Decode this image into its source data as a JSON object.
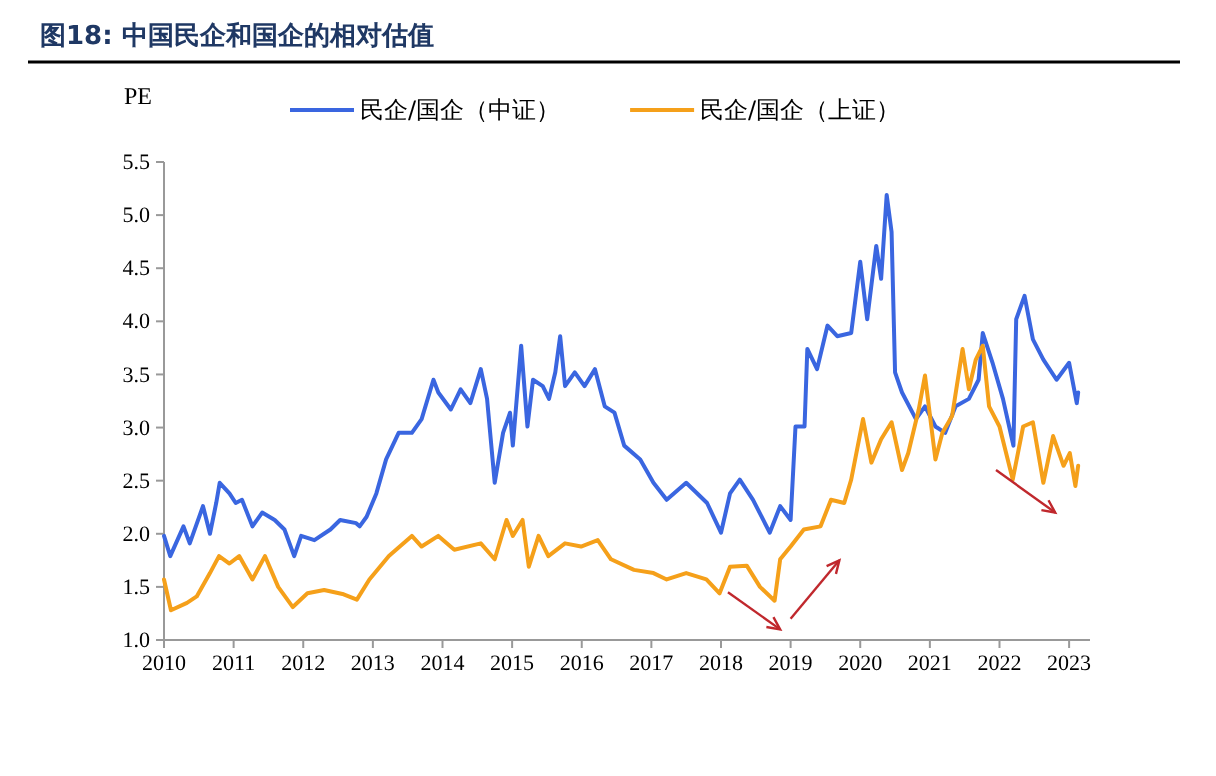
{
  "chart_data": {
    "type": "line",
    "title": "图18:  中国民企和国企的相对估值",
    "ylabel": "PE",
    "legend": "top",
    "grid": false,
    "xlim": [
      2010,
      2023.3
    ],
    "xticks": [
      2010,
      2011,
      2012,
      2013,
      2014,
      2015,
      2016,
      2017,
      2018,
      2019,
      2020,
      2021,
      2022,
      2023
    ],
    "ylim": [
      1,
      5.5
    ],
    "yticks": [
      {
        "value": 1,
        "label": "1.0"
      },
      {
        "value": 1.5,
        "label": "1.5"
      },
      {
        "value": 2,
        "label": "2.0"
      },
      {
        "value": 2.5,
        "label": "2.5"
      },
      {
        "value": 3,
        "label": "3.0"
      },
      {
        "value": 3.5,
        "label": "3.5"
      },
      {
        "value": 4,
        "label": "4.0"
      },
      {
        "value": 4.5,
        "label": "4.5"
      },
      {
        "value": 5,
        "label": "5.0"
      },
      {
        "value": 5.5,
        "label": "5.5"
      }
    ],
    "series": [
      {
        "name": "民企/国企（中证）",
        "color": "#3a66e0",
        "x": [
          2010.0,
          2010.09,
          2010.28,
          2010.37,
          2010.56,
          2010.66,
          2010.75,
          2010.8,
          2010.94,
          2011.03,
          2011.12,
          2011.27,
          2011.41,
          2011.59,
          2011.73,
          2011.87,
          2011.97,
          2012.16,
          2012.39,
          2012.53,
          2012.76,
          2012.81,
          2012.91,
          2013.05,
          2013.19,
          2013.37,
          2013.56,
          2013.7,
          2013.87,
          2013.94,
          2014.12,
          2014.26,
          2014.4,
          2014.55,
          2014.64,
          2014.75,
          2014.87,
          2014.97,
          2015.01,
          2015.13,
          2015.22,
          2015.3,
          2015.44,
          2015.53,
          2015.62,
          2015.69,
          2015.76,
          2015.9,
          2016.04,
          2016.19,
          2016.33,
          2016.47,
          2016.61,
          2016.84,
          2017.03,
          2017.22,
          2017.5,
          2017.8,
          2018.0,
          2018.13,
          2018.27,
          2018.46,
          2018.7,
          2018.85,
          2019.0,
          2019.07,
          2019.2,
          2019.24,
          2019.38,
          2019.53,
          2019.67,
          2019.87,
          2020.0,
          2020.1,
          2020.23,
          2020.3,
          2020.38,
          2020.45,
          2020.5,
          2020.6,
          2020.8,
          2020.93,
          2021.08,
          2021.22,
          2021.37,
          2021.56,
          2021.7,
          2021.76,
          2021.9,
          2022.05,
          2022.2,
          2022.24,
          2022.36,
          2022.48,
          2022.63,
          2022.82,
          2023.0,
          2023.11,
          2023.13
        ],
        "values": [
          1.98,
          1.79,
          2.07,
          1.91,
          2.26,
          2.0,
          2.29,
          2.48,
          2.38,
          2.29,
          2.32,
          2.07,
          2.2,
          2.13,
          2.04,
          1.79,
          1.98,
          1.94,
          2.04,
          2.13,
          2.1,
          2.07,
          2.16,
          2.38,
          2.7,
          2.95,
          2.95,
          3.08,
          3.45,
          3.33,
          3.17,
          3.36,
          3.23,
          3.55,
          3.27,
          2.48,
          2.95,
          3.14,
          2.83,
          3.77,
          3.01,
          3.45,
          3.39,
          3.27,
          3.52,
          3.86,
          3.39,
          3.52,
          3.39,
          3.55,
          3.2,
          3.14,
          2.83,
          2.7,
          2.48,
          2.32,
          2.48,
          2.29,
          2.01,
          2.38,
          2.51,
          2.32,
          2.01,
          2.26,
          2.13,
          3.01,
          3.01,
          3.74,
          3.55,
          3.96,
          3.86,
          3.89,
          4.56,
          4.02,
          4.71,
          4.4,
          5.19,
          4.84,
          3.52,
          3.33,
          3.08,
          3.2,
          3.01,
          2.95,
          3.2,
          3.27,
          3.45,
          3.89,
          3.61,
          3.27,
          2.83,
          4.02,
          4.24,
          3.83,
          3.64,
          3.45,
          3.61,
          3.23,
          3.33
        ]
      },
      {
        "name": "民企/国企（上证）",
        "color": "#f5a01a",
        "x": [
          2010.0,
          2010.1,
          2010.33,
          2010.47,
          2010.66,
          2010.79,
          2010.94,
          2011.08,
          2011.27,
          2011.45,
          2011.64,
          2011.85,
          2012.06,
          2012.3,
          2012.58,
          2012.77,
          2012.95,
          2013.23,
          2013.56,
          2013.7,
          2013.94,
          2014.17,
          2014.55,
          2014.75,
          2014.92,
          2015.01,
          2015.15,
          2015.24,
          2015.38,
          2015.52,
          2015.76,
          2015.99,
          2016.23,
          2016.42,
          2016.75,
          2017.03,
          2017.22,
          2017.5,
          2017.79,
          2017.98,
          2018.13,
          2018.37,
          2018.56,
          2018.77,
          2018.85,
          2019.0,
          2019.19,
          2019.43,
          2019.58,
          2019.77,
          2019.87,
          2020.04,
          2020.16,
          2020.3,
          2020.45,
          2020.6,
          2020.69,
          2020.84,
          2020.93,
          2021.08,
          2021.18,
          2021.32,
          2021.47,
          2021.56,
          2021.66,
          2021.76,
          2021.85,
          2022.0,
          2022.19,
          2022.34,
          2022.48,
          2022.63,
          2022.77,
          2022.92,
          2023.01,
          2023.09,
          2023.13
        ],
        "values": [
          1.57,
          1.28,
          1.35,
          1.41,
          1.63,
          1.79,
          1.72,
          1.79,
          1.57,
          1.79,
          1.5,
          1.31,
          1.44,
          1.47,
          1.43,
          1.38,
          1.57,
          1.79,
          1.98,
          1.88,
          1.98,
          1.85,
          1.91,
          1.76,
          2.13,
          1.98,
          2.13,
          1.69,
          1.98,
          1.79,
          1.91,
          1.88,
          1.94,
          1.76,
          1.66,
          1.63,
          1.57,
          1.63,
          1.57,
          1.44,
          1.69,
          1.7,
          1.5,
          1.37,
          1.76,
          1.88,
          2.04,
          2.07,
          2.32,
          2.29,
          2.51,
          3.08,
          2.67,
          2.89,
          3.05,
          2.6,
          2.76,
          3.17,
          3.49,
          2.7,
          2.95,
          3.11,
          3.74,
          3.36,
          3.64,
          3.77,
          3.2,
          3.01,
          2.51,
          3.01,
          3.05,
          2.48,
          2.92,
          2.64,
          2.76,
          2.45,
          2.64
        ]
      }
    ]
  }
}
